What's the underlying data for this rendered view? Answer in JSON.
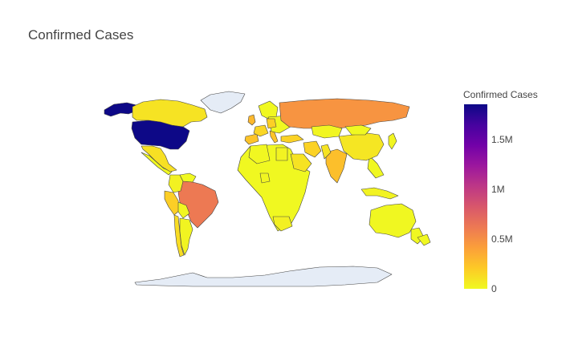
{
  "title": "Confirmed Cases",
  "chart_data": {
    "type": "choropleth",
    "title": "Confirmed Cases",
    "colorbar": {
      "title": "Confirmed Cases",
      "min": 0,
      "max": 1850000,
      "ticks": [
        {
          "value": 0,
          "label": "0"
        },
        {
          "value": 500000,
          "label": "0.5M"
        },
        {
          "value": 1000000,
          "label": "1M"
        },
        {
          "value": 1500000,
          "label": "1.5M"
        }
      ],
      "colors": [
        "#f0f921",
        "#fdca26",
        "#fb9f3a",
        "#ed7953",
        "#d8576b",
        "#bd3786",
        "#9c179e",
        "#7201a8",
        "#46039f",
        "#0d0887"
      ]
    },
    "no_data_color": "#e5ecf6",
    "regions": [
      {
        "name": "United States",
        "value": 1850000
      },
      {
        "name": "Brazil",
        "value": 615000
      },
      {
        "name": "Russia",
        "value": 470000
      },
      {
        "name": "India",
        "value": 260000
      },
      {
        "name": "United Kingdom",
        "value": 290000
      },
      {
        "name": "Spain",
        "value": 240000
      },
      {
        "name": "Italy",
        "value": 235000
      },
      {
        "name": "Peru",
        "value": 190000
      },
      {
        "name": "Turkey",
        "value": 170000
      },
      {
        "name": "Iran",
        "value": 170000
      },
      {
        "name": "Germany",
        "value": 185000
      },
      {
        "name": "France",
        "value": 155000
      },
      {
        "name": "Chile",
        "value": 125000
      },
      {
        "name": "Mexico",
        "value": 110000
      },
      {
        "name": "Canada",
        "value": 95000
      },
      {
        "name": "China",
        "value": 84000
      },
      {
        "name": "Saudi Arabia",
        "value": 95000
      },
      {
        "name": "Pakistan",
        "value": 95000
      },
      {
        "name": "Kazakhstan",
        "value": 12000
      },
      {
        "name": "Mongolia",
        "value": 200
      },
      {
        "name": "Australia",
        "value": 7000
      },
      {
        "name": "Argentina",
        "value": 20000
      },
      {
        "name": "Colombia",
        "value": 35000
      },
      {
        "name": "Venezuela",
        "value": 2000
      },
      {
        "name": "Bolivia",
        "value": 12000
      },
      {
        "name": "South Africa",
        "value": 40000
      },
      {
        "name": "Egypt",
        "value": 28000
      },
      {
        "name": "Algeria",
        "value": 9500
      },
      {
        "name": "Nigeria",
        "value": 11000
      },
      {
        "name": "Indonesia",
        "value": 28000
      },
      {
        "name": "Japan",
        "value": 17000
      },
      {
        "name": "Greenland",
        "value": null
      },
      {
        "name": "Antarctica",
        "value": null
      }
    ]
  }
}
